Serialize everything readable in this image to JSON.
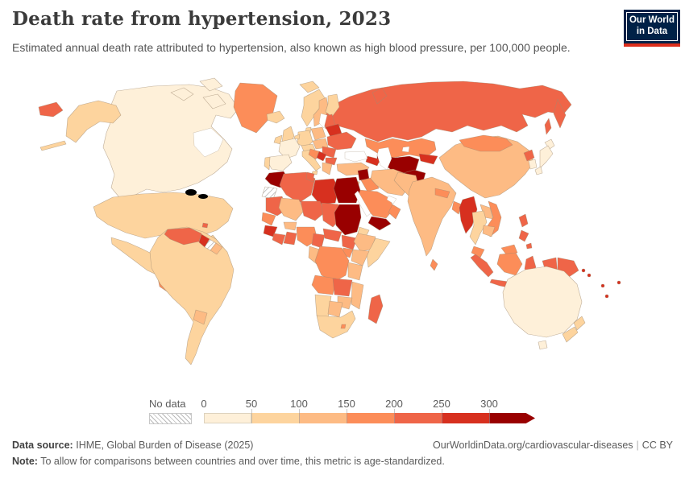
{
  "header": {
    "title": "Death rate from hypertension, 2023",
    "subtitle": "Estimated annual death rate attributed to hypertension, also known as high blood pressure, per 100,000 people.",
    "logo": {
      "line1": "Our World",
      "line2": "in Data",
      "bg_color": "#002147",
      "accent_color": "#dc2e1c"
    }
  },
  "legend": {
    "no_data_label": "No data",
    "ticks": [
      "0",
      "50",
      "100",
      "150",
      "200",
      "250",
      "300"
    ],
    "colors": [
      "#fef0d9",
      "#fdd49e",
      "#fdbb84",
      "#fc8d59",
      "#ef6548",
      "#d7301f",
      "#990000"
    ]
  },
  "footer": {
    "source_label": "Data source:",
    "source_text": "IHME, Global Burden of Disease (2025)",
    "url_text": "OurWorldinData.org/cardiovascular-diseases",
    "divider": "|",
    "license_text": "CC BY",
    "note_label": "Note:",
    "note_text": "To allow for comparisons between countries and over time, this metric is age-standardized."
  },
  "chart_data": {
    "type": "choropleth",
    "title": "Death rate from hypertension, 2023",
    "unit": "deaths per 100,000 people (age-standardized)",
    "year": "2023",
    "legend_bins": [
      "0-50",
      "50-100",
      "100-150",
      "150-200",
      "200-250",
      "250-300",
      "300+"
    ],
    "bin_colors": [
      "#fef0d9",
      "#fdd49e",
      "#fdbb84",
      "#fc8d59",
      "#ef6548",
      "#d7301f",
      "#990000"
    ],
    "no_data_key": "no-data",
    "regions": {
      "canada": "0-50",
      "usa": "50-100",
      "greenland": "150-200",
      "mexico": "50-100",
      "central-america": "150-200",
      "cuba": "50-100",
      "haiti": "300+",
      "dominican-republic": "200-250",
      "jamaica": "150-200",
      "puerto-rico": "100-150",
      "trinidad-tobago": "200-250",
      "south-america-main": "50-100",
      "venezuela": "200-250",
      "guyana": "250-300",
      "suriname": "no-data",
      "french-guiana": "100-150",
      "paraguay": "100-150",
      "iceland": "50-100",
      "united-kingdom": "50-100",
      "ireland": "50-100",
      "norway": "50-100",
      "sweden": "100-150",
      "finland": "50-100",
      "denmark": "50-100",
      "portugal": "50-100",
      "spain": "0-50",
      "france": "0-50",
      "germany": "50-100",
      "benelux": "50-100",
      "italy": "50-100",
      "switzerland-austria": "50-100",
      "poland": "100-150",
      "czech-slovakia-hungary": "100-150",
      "baltics": "200-250",
      "belarus": "250-300",
      "ukraine": "200-250",
      "romania": "200-250",
      "serbia": "250-300",
      "balkans-west": "150-200",
      "bulgaria": "200-250",
      "greece": "100-150",
      "turkey": "100-150",
      "russia": "200-250",
      "kazakhstan": "150-200",
      "uzbekistan-turkmenistan": "300+",
      "afghanistan": "300+",
      "kyrgyzstan-tajikistan": "250-300",
      "caucasus": "250-300",
      "syria": "300+",
      "jordan-israel": "100-150",
      "iraq": "150-200",
      "iran": "100-150",
      "saudi-arabia": "150-200",
      "yemen": "300+",
      "oman": "150-200",
      "morocco": "300+",
      "western-sahara": "no-data",
      "algeria": "200-250",
      "tunisia": "200-250",
      "libya": "250-300",
      "egypt": "300+",
      "mauritania": "200-250",
      "mali": "100-150",
      "niger": "200-250",
      "chad": "200-250",
      "sudan": "300+",
      "eritrea-djibouti": "50-100",
      "senegal-gambia": "150-200",
      "guinea-sierra-leone": "250-300",
      "liberia-ivory-coast": "200-250",
      "burkina-faso": "100-150",
      "ghana-togo-benin": "200-250",
      "nigeria": "150-200",
      "cameroon": "200-250",
      "central-african-republic": "200-250",
      "south-sudan": "200-250",
      "ethiopia": "100-150",
      "somalia": "50-100",
      "uganda": "150-200",
      "kenya": "100-150",
      "drc": "150-200",
      "gabon-congo": "100-150",
      "tanzania": "100-150",
      "angola": "150-200",
      "zambia": "200-250",
      "malawi-mozambique": "100-150",
      "zimbabwe": "100-150",
      "namibia": "50-100",
      "botswana": "100-150",
      "south-africa": "50-100",
      "lesotho-eswatini": "150-200",
      "madagascar": "200-250",
      "pakistan": "100-150",
      "india": "100-150",
      "nepal": "150-200",
      "bangladesh": "150-200",
      "sri-lanka": "150-200",
      "china": "100-150",
      "mongolia": "150-200",
      "north-korea": "200-250",
      "south-korea": "0-50",
      "japan": "0-50",
      "myanmar": "250-300",
      "thailand": "50-100",
      "laos": "100-150",
      "vietnam": "150-200",
      "cambodia": "100-150",
      "malaysia": "150-200",
      "philippines": "200-250",
      "indonesia": "200-250",
      "indonesia-kalimantan": "150-200",
      "papua-new-guinea": "200-250",
      "pacific-islands": "250-300",
      "australia": "0-50",
      "new-zealand": "50-100"
    }
  }
}
